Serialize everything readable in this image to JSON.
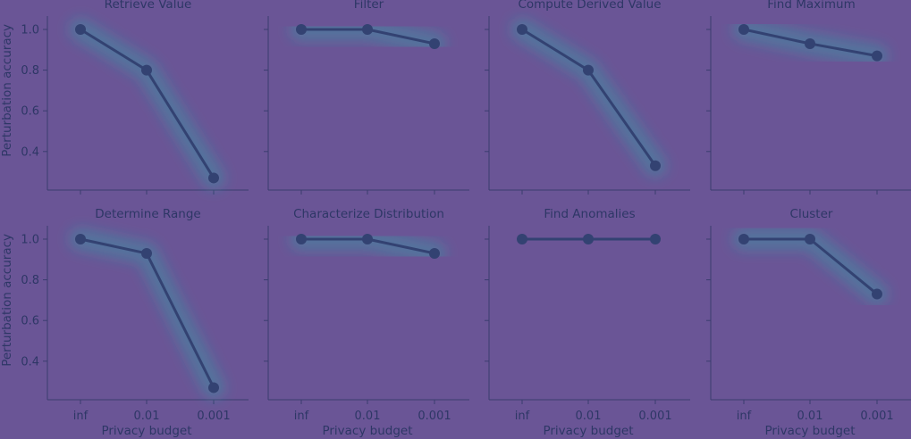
{
  "colors": {
    "background": "#6a5596",
    "series": "#334272",
    "glow": "#2fa8a8",
    "text": "#2e3766"
  },
  "chart_data": [
    {
      "type": "line",
      "title": "Retrieve Value",
      "categories": [
        "inf",
        "0.01",
        "0.001"
      ],
      "values": [
        1.0,
        0.8,
        0.27
      ],
      "xlabel": "",
      "ylabel": "Perturbation accuracy",
      "yticks": [
        "0.4",
        "0.6",
        "0.8",
        "1.0"
      ],
      "ylim": [
        0.23,
        1.05
      ]
    },
    {
      "type": "line",
      "title": "Filter",
      "categories": [
        "inf",
        "0.01",
        "0.001"
      ],
      "values": [
        1.0,
        1.0,
        0.93
      ],
      "xlabel": "",
      "ylabel": "",
      "ylim": [
        0.23,
        1.05
      ]
    },
    {
      "type": "line",
      "title": "Compute Derived Value",
      "categories": [
        "inf",
        "0.01",
        "0.001"
      ],
      "values": [
        1.0,
        0.8,
        0.33
      ],
      "xlabel": "",
      "ylabel": "",
      "ylim": [
        0.23,
        1.05
      ]
    },
    {
      "type": "line",
      "title": "Find Maximum",
      "categories": [
        "inf",
        "0.01",
        "0.001"
      ],
      "values": [
        1.0,
        0.93,
        0.87
      ],
      "xlabel": "",
      "ylabel": "",
      "ylim": [
        0.23,
        1.05
      ]
    },
    {
      "type": "line",
      "title": "Determine Range",
      "categories": [
        "inf",
        "0.01",
        "0.001"
      ],
      "values": [
        1.0,
        0.93,
        0.27
      ],
      "xlabel": "Privacy budget",
      "ylabel": "Perturbation accuracy",
      "xticks": [
        "inf",
        "0.01",
        "0.001"
      ],
      "yticks": [
        "0.4",
        "0.6",
        "0.8",
        "1.0"
      ],
      "ylim": [
        0.23,
        1.05
      ]
    },
    {
      "type": "line",
      "title": "Characterize Distribution",
      "categories": [
        "inf",
        "0.01",
        "0.001"
      ],
      "values": [
        1.0,
        1.0,
        0.93
      ],
      "xlabel": "Privacy budget",
      "ylabel": "",
      "xticks": [
        "inf",
        "0.01",
        "0.001"
      ],
      "ylim": [
        0.23,
        1.05
      ]
    },
    {
      "type": "line",
      "title": "Find Anomalies",
      "categories": [
        "inf",
        "0.01",
        "0.001"
      ],
      "values": [
        1.0,
        1.0,
        1.0
      ],
      "xlabel": "Privacy budget",
      "ylabel": "",
      "xticks": [
        "inf",
        "0.01",
        "0.001"
      ],
      "ylim": [
        0.23,
        1.05
      ]
    },
    {
      "type": "line",
      "title": "Cluster",
      "categories": [
        "inf",
        "0.01",
        "0.001"
      ],
      "values": [
        1.0,
        1.0,
        0.73
      ],
      "xlabel": "Privacy budget",
      "ylabel": "",
      "xticks": [
        "inf",
        "0.01",
        "0.001"
      ],
      "ylim": [
        0.23,
        1.05
      ]
    }
  ]
}
